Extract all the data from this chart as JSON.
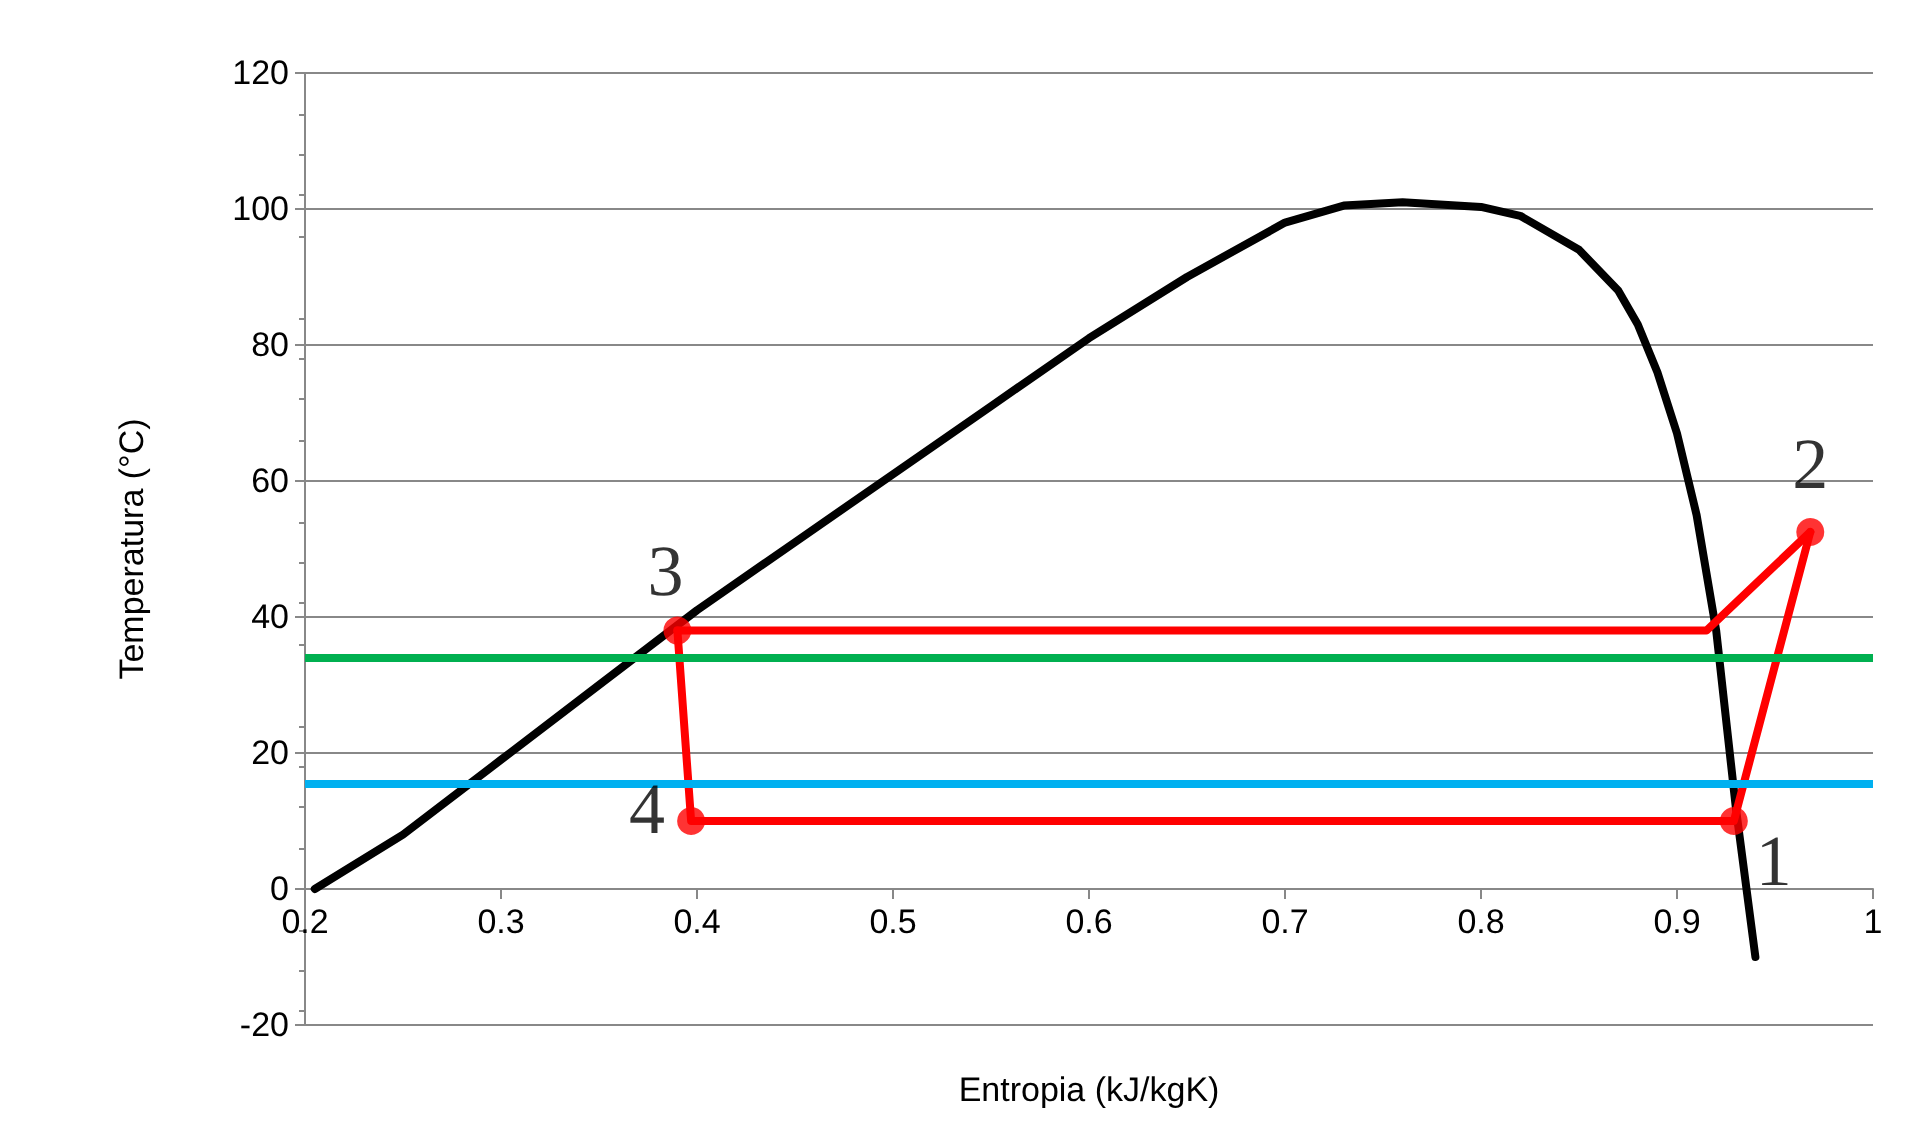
{
  "chart_data": {
    "type": "line",
    "xlabel": "Entropia (kJ/kgK)",
    "ylabel": "Temperatura (°C)",
    "xlim": [
      0.2,
      1
    ],
    "xticks": [
      0.2,
      0.3,
      0.4,
      0.5,
      0.6,
      0.7,
      0.8,
      0.9,
      1
    ],
    "ylim": [
      -20,
      120
    ],
    "yticks": [
      -20,
      0,
      20,
      40,
      60,
      80,
      100,
      120
    ],
    "grid": "y",
    "line_style": "solid",
    "series": [
      {
        "color": "#000000",
        "marker": "none",
        "x": [
          0.205,
          0.25,
          0.3,
          0.35,
          0.4,
          0.45,
          0.5,
          0.55,
          0.6,
          0.65,
          0.7,
          0.73,
          0.76,
          0.8,
          0.82,
          0.85,
          0.87,
          0.88,
          0.89,
          0.9,
          0.91,
          0.92,
          0.93,
          0.94
        ],
        "values": [
          0,
          8,
          19,
          30,
          41,
          51,
          61,
          71,
          81,
          90,
          98,
          100.5,
          101,
          100.3,
          99,
          94,
          88,
          83,
          76,
          67,
          55,
          38,
          12,
          -10
        ]
      },
      {
        "color": "#ff0000",
        "marker": "none",
        "x": [
          0.39,
          0.397,
          0.929,
          0.968
        ],
        "values": [
          38,
          10,
          10,
          52.5
        ]
      },
      {
        "color": "#ff0000",
        "marker": "none",
        "x": [
          0.39,
          0.915,
          0.968
        ],
        "values": [
          38,
          38,
          52.5
        ]
      },
      {
        "type": "scatter",
        "color": "#ff0000",
        "marker": "circle",
        "x": [
          0.39,
          0.397,
          0.929,
          0.968
        ],
        "values": [
          38,
          10,
          10,
          52.5
        ]
      }
    ],
    "ref_lines": [
      {
        "axis": "y",
        "value": 34,
        "color": "#00b050"
      },
      {
        "axis": "y",
        "value": 15.5,
        "color": "#00b0f0"
      }
    ],
    "annotations": [
      {
        "text": "1",
        "x": 0.929,
        "y": 10
      },
      {
        "text": "2",
        "x": 0.968,
        "y": 52.5
      },
      {
        "text": "3",
        "x": 0.39,
        "y": 38
      },
      {
        "text": "4",
        "x": 0.397,
        "y": 10
      }
    ]
  }
}
